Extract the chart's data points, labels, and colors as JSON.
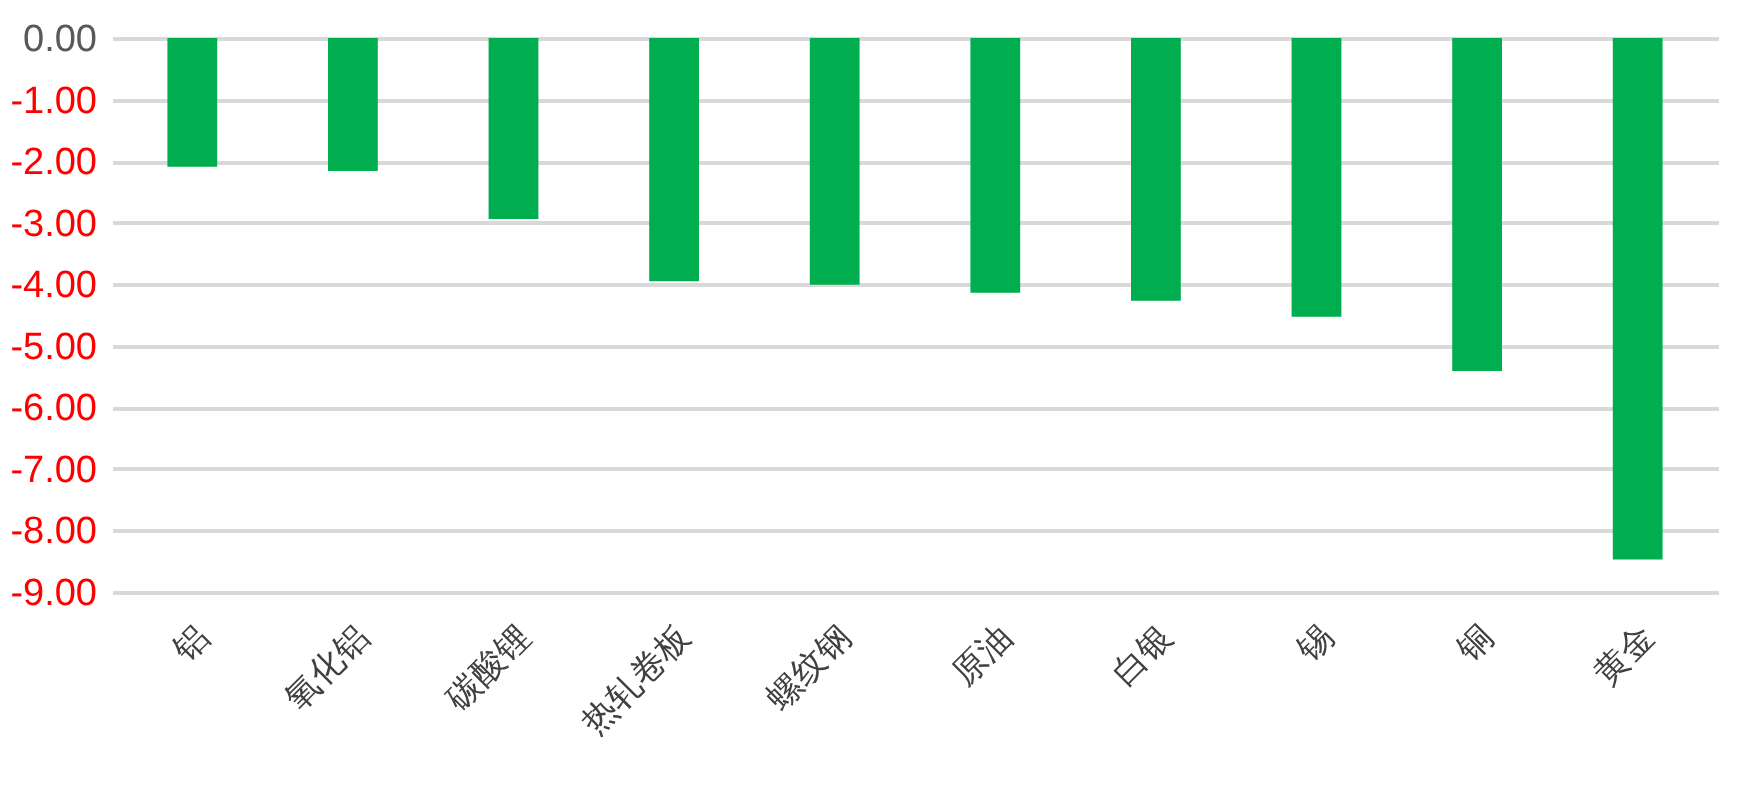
{
  "chart_data": {
    "type": "bar",
    "categories": [
      "铝",
      "氧化铝",
      "碳酸锂",
      "热轧卷板",
      "螺纹钢",
      "原油",
      "白银",
      "锡",
      "铜",
      "黄金"
    ],
    "values": [
      -2.09,
      -2.16,
      -2.94,
      -3.95,
      -4.01,
      -4.14,
      -4.27,
      -4.53,
      -5.41,
      -8.47
    ],
    "color": "#00ad4f",
    "ylim": [
      -9,
      0
    ],
    "yticks": [
      {
        "value": 0,
        "label": "0.00"
      },
      {
        "value": -1,
        "label": "-1.00"
      },
      {
        "value": -2,
        "label": "-2.00"
      },
      {
        "value": -3,
        "label": "-3.00"
      },
      {
        "value": -4,
        "label": "-4.00"
      },
      {
        "value": -5,
        "label": "-5.00"
      },
      {
        "value": -6,
        "label": "-6.00"
      },
      {
        "value": -7,
        "label": "-7.00"
      },
      {
        "value": -8,
        "label": "-8.00"
      },
      {
        "value": -9,
        "label": "-9.00"
      }
    ],
    "grid": "y"
  }
}
